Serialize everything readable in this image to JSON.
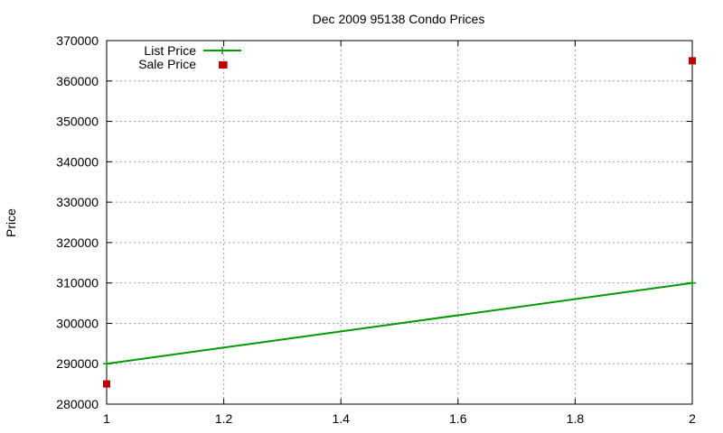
{
  "chart_data": {
    "type": "line",
    "title": "Dec 2009 95138 Condo Prices",
    "xlabel": "",
    "ylabel": "Price",
    "xlim": [
      1,
      2
    ],
    "ylim": [
      280000,
      370000
    ],
    "x_ticks": [
      1,
      1.2,
      1.4,
      1.6,
      1.8,
      2
    ],
    "x_tick_labels": [
      "1",
      "1.2",
      "1.4",
      "1.6",
      "1.8",
      "2"
    ],
    "y_ticks": [
      280000,
      290000,
      300000,
      310000,
      320000,
      330000,
      340000,
      350000,
      360000,
      370000
    ],
    "y_tick_labels": [
      "280000",
      "290000",
      "300000",
      "310000",
      "320000",
      "330000",
      "340000",
      "350000",
      "360000",
      "370000"
    ],
    "grid": true,
    "legend_position": "top-left",
    "series": [
      {
        "name": "List Price",
        "style": "linespoints",
        "color": "#009900",
        "points": [
          {
            "x": 1,
            "y": 290000
          },
          {
            "x": 2,
            "y": 310000
          }
        ]
      },
      {
        "name": "Sale Price",
        "style": "points",
        "color": "#bb0000",
        "points": [
          {
            "x": 1,
            "y": 285000
          },
          {
            "x": 1.2,
            "y": 364000
          },
          {
            "x": 2,
            "y": 365000
          }
        ]
      }
    ]
  }
}
